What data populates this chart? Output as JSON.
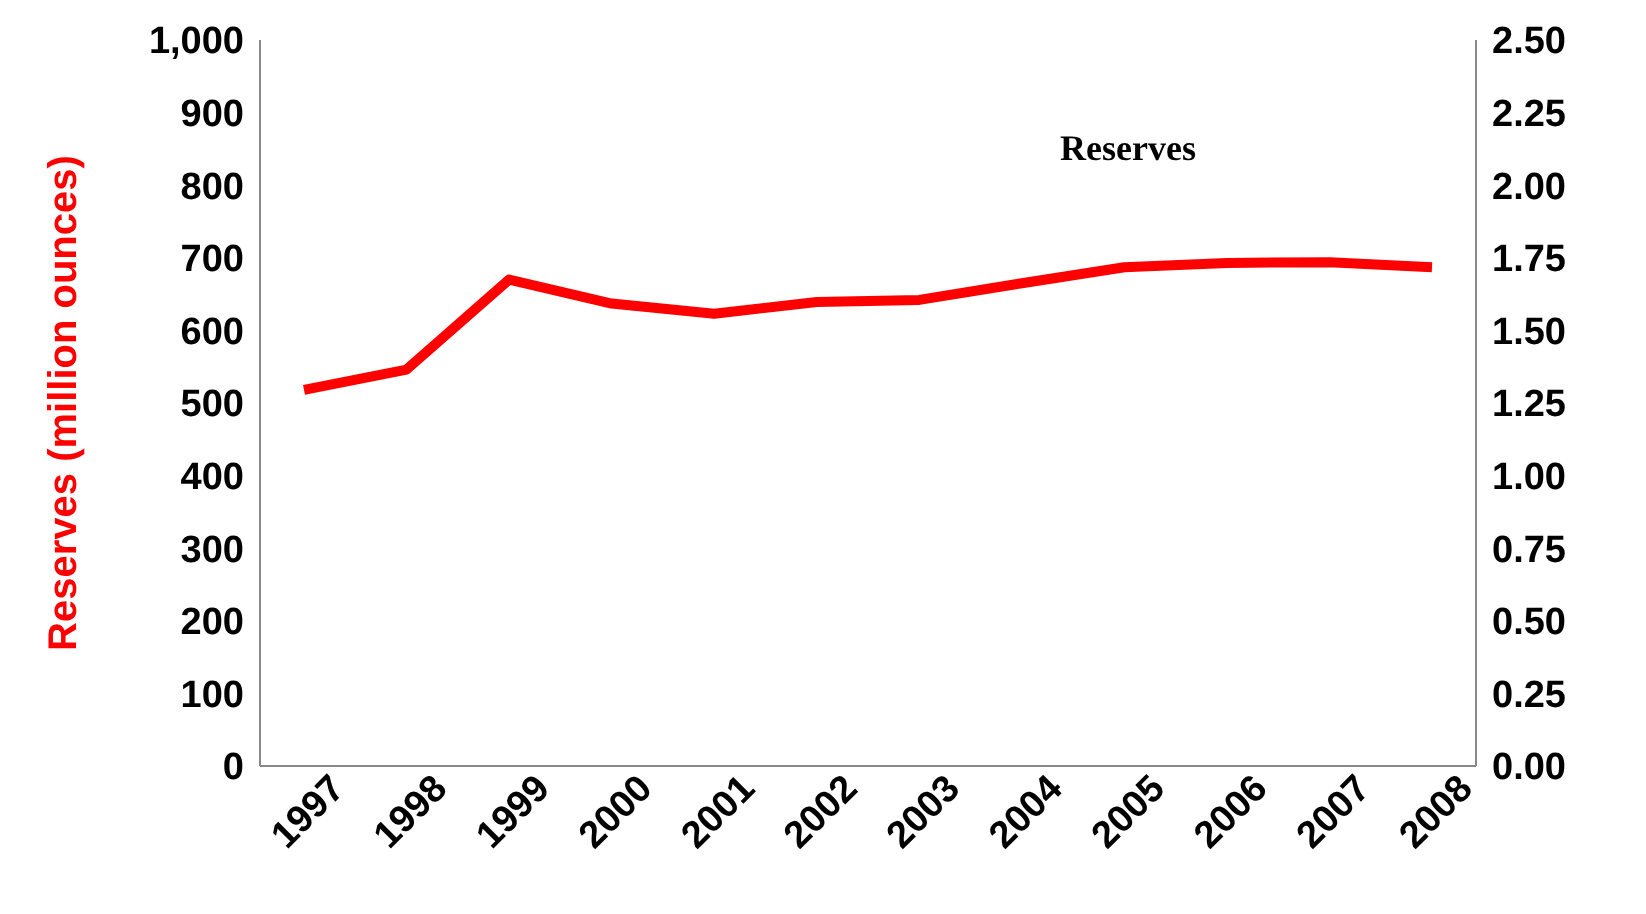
{
  "chart_data": {
    "type": "line",
    "ylabel": "Reserves (million ounces)",
    "categories": [
      "1997",
      "1998",
      "1999",
      "2000",
      "2001",
      "2002",
      "2003",
      "2004",
      "2005",
      "2006",
      "2007",
      "2008"
    ],
    "series": [
      {
        "color": "#ff0000",
        "values": [
          518,
          546,
          670,
          637,
          623,
          639,
          642,
          665,
          687,
          693,
          694,
          687
        ]
      }
    ],
    "ylim": [
      0,
      1000
    ],
    "yticks": [
      0,
      100,
      200,
      300,
      400,
      500,
      600,
      700,
      800,
      900,
      {
        "value": 1000,
        "label": "1,000"
      }
    ],
    "y2lim": [
      0,
      2.5
    ],
    "y2ticks": [
      {
        "value": 0,
        "label": "0.00"
      },
      {
        "value": 0.25,
        "label": "0.25"
      },
      {
        "value": 0.5,
        "label": "0.50"
      },
      {
        "value": 0.75,
        "label": "0.75"
      },
      {
        "value": 1,
        "label": "1.00"
      },
      {
        "value": 1.25,
        "label": "1.25"
      },
      {
        "value": 1.5,
        "label": "1.50"
      },
      {
        "value": 1.75,
        "label": "1.75"
      },
      {
        "value": 2,
        "label": "2.00"
      },
      {
        "value": 2.25,
        "label": "2.25"
      },
      {
        "value": 2.5,
        "label": "2.50"
      }
    ],
    "annotations": [
      "Reserves"
    ],
    "grid": false,
    "marker": "none",
    "line_style": "solid"
  }
}
